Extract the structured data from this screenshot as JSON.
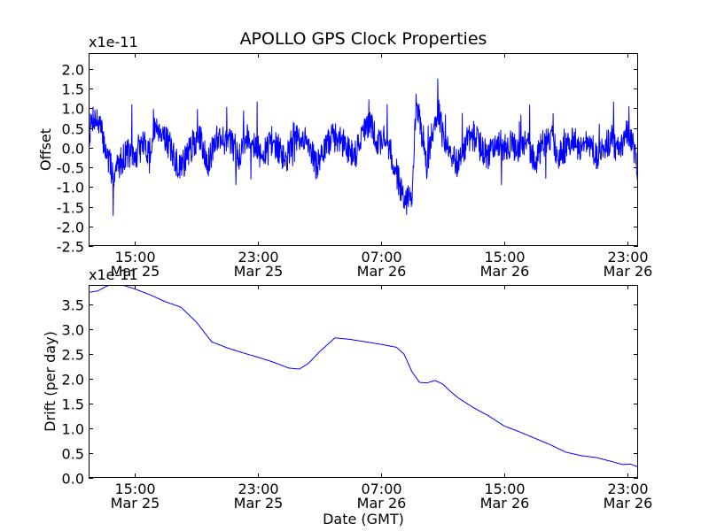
{
  "chart_data": [
    {
      "type": "line",
      "title": "APOLLO GPS Clock Properties",
      "ylabel": "Offset",
      "xlabel": "",
      "scale_label": "x1e-11",
      "y_scale": 1e-11,
      "ylim": [
        -2.5,
        2.4
      ],
      "yticks": [
        -2.5,
        -2.0,
        -1.5,
        -1.0,
        -0.5,
        0.0,
        0.5,
        1.0,
        1.5,
        2.0
      ],
      "ytick_labels": [
        "-2.5",
        "-2.0",
        "-1.5",
        "-1.0",
        "-0.5",
        "0.0",
        "0.5",
        "1.0",
        "1.5",
        "2.0"
      ],
      "x_unit": "hours since Mar 25 12:00 GMT",
      "xlim": [
        0,
        35.7
      ],
      "xticks": [
        3,
        11,
        19,
        27,
        35
      ],
      "xtick_time": [
        "15:00",
        "23:00",
        "07:00",
        "15:00",
        "23:00"
      ],
      "xtick_date": [
        "Mar 25",
        "Mar 25",
        "Mar 26",
        "Mar 26",
        "Mar 26"
      ],
      "series": [
        {
          "name": "offset",
          "color": "#0000ff",
          "noise": {
            "seed": 7,
            "samples": 1500,
            "amplitude": 0.38,
            "spike_chance": 0.035,
            "spike_amplitude": 0.9
          },
          "x": [
            0,
            0.3,
            0.7,
            1.2,
            1.6,
            2.0,
            2.5,
            3.0,
            3.5,
            4.0,
            4.4,
            4.8,
            5.3,
            5.8,
            6.3,
            6.8,
            7.3,
            7.8,
            8.3,
            8.8,
            9.3,
            9.8,
            10.3,
            10.8,
            11.3,
            11.8,
            12.3,
            12.8,
            13.3,
            13.8,
            14.3,
            14.8,
            15.3,
            15.8,
            16.3,
            16.8,
            17.3,
            17.8,
            18.3,
            18.8,
            19.3,
            19.8,
            20.2,
            20.6,
            21.0,
            21.3,
            21.6,
            22.0,
            22.3,
            22.7,
            23.0,
            23.5,
            24.0,
            24.5,
            25.0,
            25.5,
            26.0,
            26.5,
            27.0,
            27.5,
            28.0,
            28.5,
            29.0,
            29.5,
            30.0,
            30.5,
            31.0,
            31.5,
            32.0,
            32.5,
            33.0,
            33.5,
            34.0,
            34.5,
            35.0,
            35.4,
            35.7
          ],
          "values": [
            0.3,
            0.8,
            0.6,
            -0.2,
            -0.7,
            -0.4,
            -0.1,
            -0.3,
            0.1,
            -0.1,
            0.6,
            0.4,
            0.0,
            -0.5,
            -0.3,
            0.1,
            0.2,
            -0.4,
            0.3,
            0.2,
            0.1,
            -0.2,
            0.3,
            0.1,
            -0.3,
            0.2,
            0.0,
            -0.4,
            0.3,
            0.1,
            0.2,
            -0.5,
            -0.1,
            0.3,
            0.2,
            0.0,
            -0.2,
            0.4,
            0.6,
            0.1,
            0.3,
            -0.4,
            -0.9,
            -1.4,
            -1.2,
            1.3,
            0.3,
            -0.5,
            0.4,
            1.0,
            0.3,
            -0.2,
            -0.4,
            0.1,
            0.3,
            0.0,
            -0.2,
            0.2,
            0.0,
            0.1,
            -0.2,
            0.2,
            -0.4,
            0.1,
            0.3,
            -0.2,
            0.0,
            0.3,
            -0.1,
            0.2,
            -0.3,
            0.1,
            0.2,
            -0.2,
            0.4,
            0.0,
            -0.8
          ]
        }
      ]
    },
    {
      "type": "line",
      "title": "",
      "ylabel": "Drift (per day)",
      "xlabel": "Date (GMT)",
      "scale_label": "x1e-11",
      "y_scale": 1e-11,
      "ylim": [
        0.0,
        3.9
      ],
      "yticks": [
        0.0,
        0.5,
        1.0,
        1.5,
        2.0,
        2.5,
        3.0,
        3.5
      ],
      "ytick_labels": [
        "0.0",
        "0.5",
        "1.0",
        "1.5",
        "2.0",
        "2.5",
        "3.0",
        "3.5"
      ],
      "x_unit": "hours since Mar 25 12:00 GMT",
      "xlim": [
        0,
        35.7
      ],
      "xticks": [
        3,
        11,
        19,
        27,
        35
      ],
      "xtick_time": [
        "15:00",
        "23:00",
        "07:00",
        "15:00",
        "23:00"
      ],
      "xtick_date": [
        "Mar 25",
        "Mar 25",
        "Mar 26",
        "Mar 26",
        "Mar 26"
      ],
      "series": [
        {
          "name": "drift",
          "color": "#0000ff",
          "x": [
            0,
            0.6,
            1.2,
            1.7,
            2.4,
            3.0,
            4.0,
            5.0,
            6.0,
            7.0,
            8.0,
            9.0,
            10.0,
            11.0,
            12.0,
            13.0,
            13.7,
            14.3,
            15.0,
            16.0,
            17.0,
            18.0,
            19.0,
            20.0,
            20.5,
            21.0,
            21.5,
            22.0,
            22.5,
            23.0,
            23.5,
            24.0,
            25.0,
            26.0,
            27.0,
            28.0,
            29.0,
            30.0,
            31.0,
            32.0,
            33.0,
            34.0,
            34.7,
            35.2,
            35.7
          ],
          "values": [
            3.75,
            3.78,
            3.88,
            3.93,
            3.88,
            3.82,
            3.7,
            3.56,
            3.45,
            3.15,
            2.75,
            2.63,
            2.53,
            2.44,
            2.34,
            2.22,
            2.2,
            2.32,
            2.55,
            2.83,
            2.8,
            2.75,
            2.7,
            2.64,
            2.5,
            2.15,
            1.93,
            1.92,
            1.97,
            1.9,
            1.75,
            1.62,
            1.42,
            1.25,
            1.05,
            0.93,
            0.8,
            0.67,
            0.52,
            0.45,
            0.41,
            0.33,
            0.27,
            0.28,
            0.22
          ]
        }
      ]
    }
  ]
}
